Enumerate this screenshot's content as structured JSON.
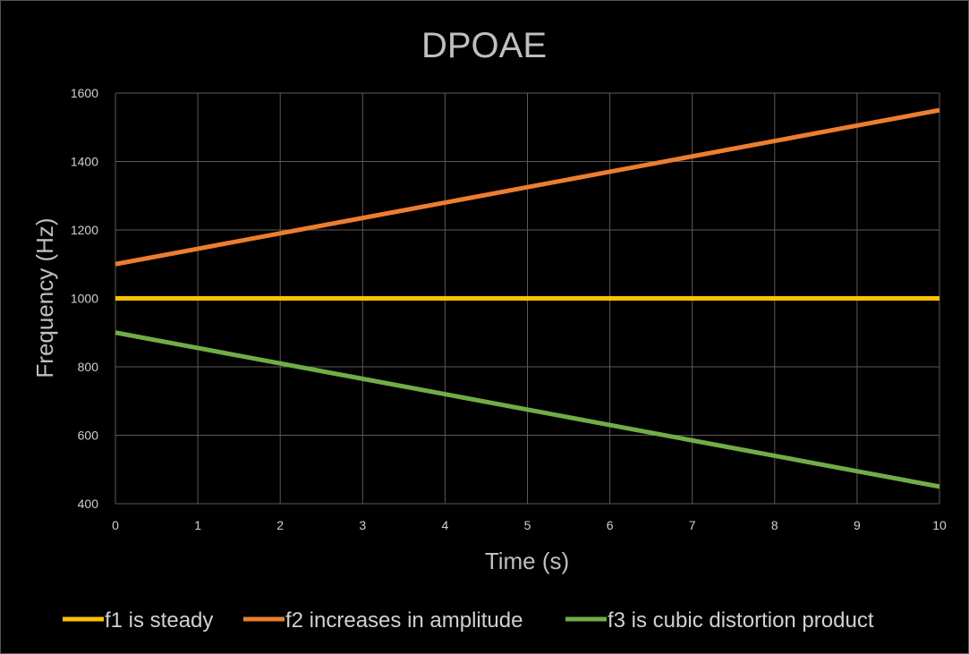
{
  "chart_data": {
    "type": "line",
    "title": "DPOAE",
    "xlabel": "Time (s)",
    "ylabel": "Frequency (Hz)",
    "x": [
      0,
      1,
      2,
      3,
      4,
      5,
      6,
      7,
      8,
      9,
      10
    ],
    "xticks": [
      "0",
      "1",
      "2",
      "3",
      "4",
      "5",
      "6",
      "7",
      "8",
      "9",
      "10"
    ],
    "yticks": [
      "400",
      "600",
      "800",
      "1000",
      "1200",
      "1400",
      "1600"
    ],
    "xlim": [
      0,
      10
    ],
    "ylim": [
      400,
      1600
    ],
    "grid": true,
    "legend_position": "bottom",
    "background": "#000000",
    "series": [
      {
        "name": "f1 is steady",
        "color": "#FFC000",
        "values": [
          1000,
          1000,
          1000,
          1000,
          1000,
          1000,
          1000,
          1000,
          1000,
          1000,
          1000
        ]
      },
      {
        "name": "f2 increases in amplitude",
        "color": "#ED7D31",
        "values": [
          1100,
          1145,
          1190,
          1235,
          1280,
          1325,
          1370,
          1415,
          1460,
          1505,
          1550
        ]
      },
      {
        "name": "f3 is cubic distortion product",
        "color": "#70AD47",
        "values": [
          900,
          855,
          810,
          765,
          720,
          675,
          630,
          585,
          540,
          495,
          450
        ]
      }
    ]
  }
}
